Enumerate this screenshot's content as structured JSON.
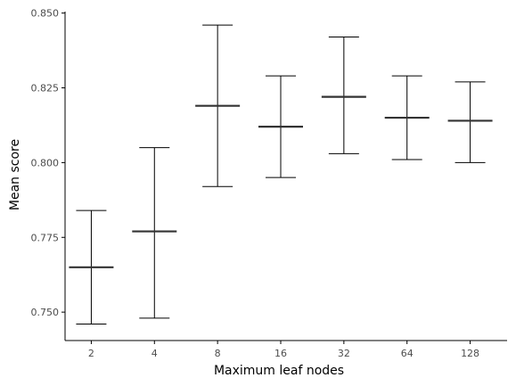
{
  "chart_data": {
    "type": "errorbar",
    "title": "",
    "xlabel": "Maximum leaf nodes",
    "ylabel": "Mean score",
    "categories": [
      "2",
      "4",
      "8",
      "16",
      "32",
      "64",
      "128"
    ],
    "series": [
      {
        "mean": [
          0.765,
          0.777,
          0.819,
          0.812,
          0.822,
          0.815,
          0.814
        ],
        "lower": [
          0.746,
          0.748,
          0.792,
          0.795,
          0.803,
          0.801,
          0.8
        ],
        "upper": [
          0.784,
          0.805,
          0.846,
          0.829,
          0.842,
          0.829,
          0.827
        ]
      }
    ],
    "yticks": [
      0.75,
      0.775,
      0.8,
      0.825,
      0.85
    ],
    "ytick_labels": [
      "0.750",
      "0.775",
      "0.800",
      "0.825",
      "0.850"
    ],
    "ylim": [
      0.7405,
      0.8505
    ],
    "grid": false,
    "legend": "none",
    "colors": {
      "mean_line": "#333333",
      "error_bar": "#000000",
      "axis": "#000000",
      "tick_text": "#4d4d4d"
    }
  }
}
